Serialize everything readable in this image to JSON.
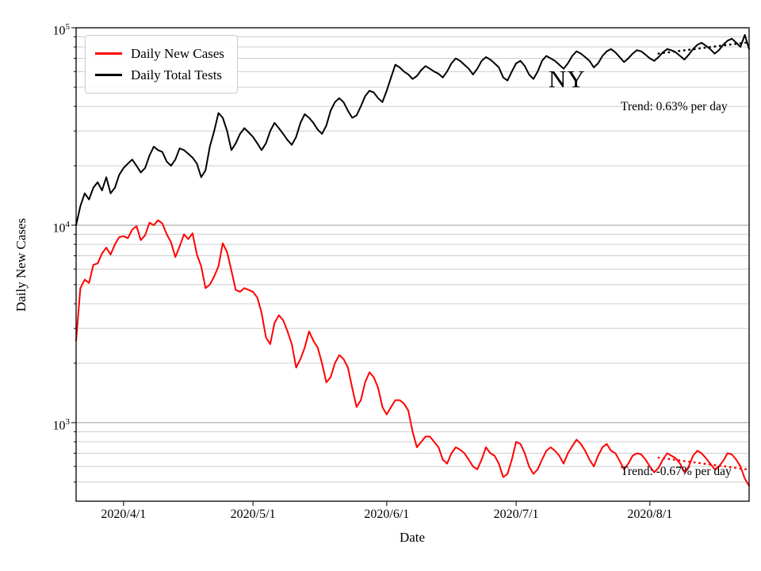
{
  "figure": {
    "background": "#ffffff",
    "annotations": {
      "state": "NY",
      "trend_tests": "Trend: 0.63% per day",
      "trend_cases": "Trend: -0.67% per day"
    }
  },
  "chart_data": {
    "type": "line",
    "title": "",
    "xlabel": "Date",
    "ylabel": "Daily New Cases",
    "y_scale": "log",
    "ylim": [
      400,
      100000
    ],
    "x_range_days": [
      0,
      156
    ],
    "start_date": "2020-03-21",
    "end_date": "2020-08-24",
    "grid": "horizontal major and minor, light gray",
    "legend_position": "upper left",
    "x_ticks": [
      {
        "label": "2020/4/1",
        "day": 11
      },
      {
        "label": "2020/5/1",
        "day": 41
      },
      {
        "label": "2020/6/1",
        "day": 72
      },
      {
        "label": "2020/7/1",
        "day": 102
      },
      {
        "label": "2020/8/1",
        "day": 133
      }
    ],
    "y_ticks": [
      {
        "exp": 3,
        "value": 1000
      },
      {
        "exp": 4,
        "value": 10000
      },
      {
        "exp": 5,
        "value": 100000
      }
    ],
    "series": [
      {
        "name": "Daily New Cases",
        "color": "#ff0000",
        "values": [
          2600,
          4800,
          5300,
          5100,
          6300,
          6400,
          7200,
          7700,
          7100,
          8000,
          8700,
          8800,
          8600,
          9500,
          9900,
          8400,
          8900,
          10300,
          10000,
          10600,
          10200,
          9000,
          8200,
          6900,
          7800,
          9000,
          8500,
          9100,
          7100,
          6200,
          4800,
          5000,
          5500,
          6200,
          8100,
          7300,
          5900,
          4700,
          4600,
          4800,
          4700,
          4600,
          4300,
          3600,
          2700,
          2500,
          3200,
          3500,
          3300,
          2900,
          2500,
          1900,
          2100,
          2400,
          2900,
          2600,
          2400,
          2000,
          1600,
          1700,
          2000,
          2200,
          2100,
          1900,
          1500,
          1200,
          1300,
          1600,
          1800,
          1700,
          1500,
          1200,
          1100,
          1200,
          1300,
          1300,
          1250,
          1150,
          900,
          750,
          800,
          850,
          850,
          800,
          750,
          650,
          620,
          700,
          750,
          730,
          700,
          650,
          600,
          580,
          650,
          750,
          700,
          680,
          620,
          530,
          550,
          650,
          800,
          780,
          700,
          600,
          550,
          580,
          650,
          720,
          750,
          720,
          680,
          620,
          700,
          760,
          820,
          780,
          720,
          650,
          600,
          680,
          750,
          780,
          720,
          700,
          640,
          580,
          620,
          680,
          700,
          690,
          650,
          600,
          560,
          590,
          650,
          700,
          680,
          660,
          620,
          560,
          600,
          680,
          720,
          700,
          660,
          620,
          580,
          600,
          640,
          700,
          690,
          650,
          600,
          520,
          480
        ]
      },
      {
        "name": "Daily Total Tests",
        "color": "#000000",
        "values": [
          10000,
          12500,
          14500,
          13500,
          15500,
          16500,
          15000,
          17500,
          14500,
          15500,
          18000,
          19500,
          20500,
          21500,
          20000,
          18500,
          19500,
          22500,
          25000,
          24000,
          23500,
          21000,
          20000,
          21500,
          24500,
          24000,
          23000,
          22000,
          20500,
          17500,
          19000,
          25000,
          30000,
          37000,
          35000,
          30000,
          24000,
          26000,
          29000,
          31000,
          29500,
          28000,
          26000,
          24000,
          26000,
          30000,
          33000,
          31000,
          29000,
          27000,
          25500,
          28000,
          33000,
          36500,
          35000,
          33000,
          30500,
          29000,
          32000,
          38000,
          42000,
          44000,
          42000,
          38000,
          35000,
          36000,
          40000,
          45000,
          48000,
          47000,
          44000,
          42000,
          48000,
          56000,
          65000,
          63000,
          60000,
          58000,
          55000,
          57000,
          61000,
          64000,
          62000,
          60000,
          58500,
          56000,
          60000,
          66000,
          70000,
          68000,
          65000,
          62000,
          58000,
          62000,
          68000,
          71000,
          69000,
          66000,
          63000,
          56000,
          54000,
          60000,
          66000,
          68000,
          64000,
          58000,
          55000,
          60000,
          68000,
          72000,
          70000,
          68000,
          65000,
          62000,
          66000,
          72000,
          76000,
          74000,
          71000,
          68000,
          63000,
          66000,
          72000,
          76000,
          78000,
          75000,
          71000,
          67000,
          70000,
          74000,
          77000,
          76000,
          73000,
          70000,
          68000,
          71000,
          75000,
          78000,
          77000,
          75000,
          72000,
          69000,
          73000,
          78000,
          82000,
          84000,
          81000,
          78000,
          74000,
          77000,
          82000,
          86000,
          88000,
          84000,
          80000,
          92000,
          78000
        ]
      }
    ],
    "trend_lines": [
      {
        "name": "tests-trend",
        "label": "Trend: 0.63% per day",
        "rate_percent_per_day": 0.63,
        "color": "#000000",
        "start_day": 135,
        "end_day": 156,
        "start_value": 74000,
        "end_value": 84500
      },
      {
        "name": "cases-trend",
        "label": "Trend: -0.67% per day",
        "rate_percent_per_day": -0.67,
        "color": "#ff0000",
        "start_day": 135,
        "end_day": 156,
        "start_value": 665,
        "end_value": 578
      }
    ]
  }
}
